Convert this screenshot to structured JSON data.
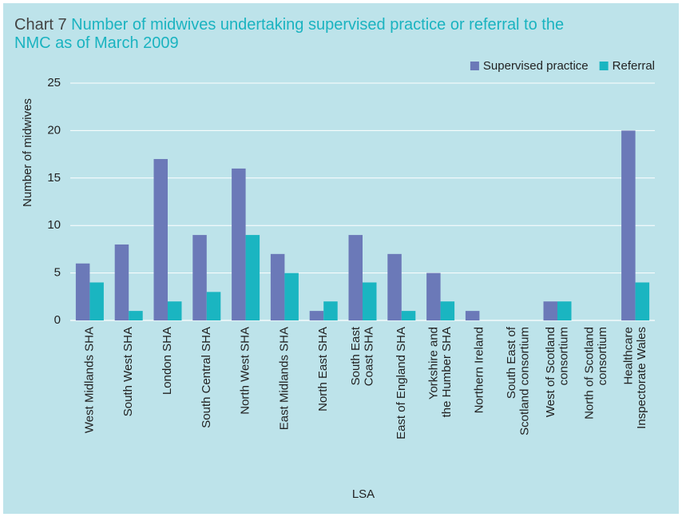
{
  "chart_data": {
    "type": "bar",
    "label": "Chart 7",
    "title": "Number of midwives undertaking supervised practice or referral to the NMC as of March 2009",
    "x_label": "LSA",
    "y_label": "Number of midwives",
    "categories": [
      "West Midlands SHA",
      "South West SHA",
      "London SHA",
      "South Central SHA",
      "North West SHA",
      "East Midlands SHA",
      "North East SHA",
      "South East\nCoast SHA",
      "East of England SHA",
      "Yorkshire and\nthe Humber SHA",
      "Northern Ireland",
      "South East of\nScotland consortium",
      "West of Scotland\nconsortium",
      "North of Scotland\nconsortium",
      "Healthcare\nInspectorate Wales"
    ],
    "series": [
      {
        "name": "Supervised practice",
        "color": "#6b79b8",
        "values": [
          6,
          8,
          17,
          9,
          16,
          7,
          1,
          9,
          7,
          5,
          1,
          0,
          2,
          0,
          20
        ]
      },
      {
        "name": "Referral",
        "color": "#1ab5c1",
        "values": [
          4,
          1,
          2,
          3,
          9,
          5,
          2,
          4,
          1,
          2,
          0,
          0,
          2,
          0,
          4
        ]
      }
    ],
    "ylim": [
      0,
      25
    ],
    "yticks": [
      0,
      5,
      10,
      15,
      20,
      25
    ],
    "grid": true,
    "legend": "top-right"
  }
}
